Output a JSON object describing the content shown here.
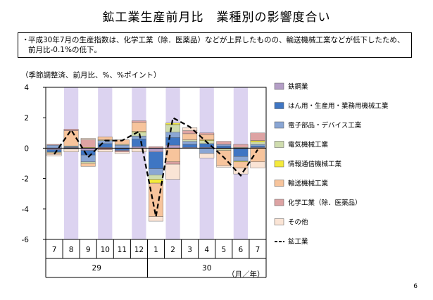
{
  "page": {
    "title": "鉱工業生産前月比　業種別の影響度合い",
    "note_bullet": "・",
    "note": "平成30年7月の生産指数は、化学工業（除．医薬品）などが上昇したものの、輸送機械工業などが低下したため、前月比-0.1%の低下。",
    "unit_label": "（季節調整済、前月比、%、%ポイント）",
    "page_number": "6"
  },
  "chart_data": {
    "type": "bar",
    "stacked": true,
    "with_line": true,
    "ylim": [
      -6,
      4
    ],
    "y_ticks": [
      "4",
      "2",
      "0",
      "-2",
      "-4",
      "-6"
    ],
    "categories": [
      "7",
      "8",
      "9",
      "10",
      "11",
      "12",
      "1",
      "2",
      "3",
      "4",
      "5",
      "6",
      "7"
    ],
    "year_labels": [
      {
        "label": "29",
        "span": [
          0,
          5
        ]
      },
      {
        "label": "30",
        "span": [
          6,
          12
        ]
      }
    ],
    "x_unit": "（月／年）",
    "shaded_categories": [
      1,
      3,
      5,
      7,
      9,
      11
    ],
    "colors": {
      "shade": "#dcd3f0",
      "line": "#000000"
    },
    "series": [
      {
        "name": "鉄鋼業",
        "color": "#b49ec6",
        "values": [
          -0.1,
          0.05,
          -0.15,
          0.05,
          -0.05,
          0.1,
          -0.25,
          0.2,
          0.05,
          0.05,
          -0.05,
          -0.05,
          0.05
        ]
      },
      {
        "name": "はん用・生産用・業務用機械工業",
        "color": "#3f76c3",
        "values": [
          -0.15,
          0.05,
          -0.3,
          0.25,
          -0.1,
          0.5,
          -1.1,
          0.5,
          0.2,
          0.25,
          0.15,
          -0.5,
          0.1
        ]
      },
      {
        "name": "電子部品・デバイス工業",
        "color": "#8aa6d4",
        "values": [
          0.2,
          -0.05,
          -0.45,
          0.2,
          0.2,
          0.2,
          -0.4,
          0.35,
          0.2,
          -0.35,
          0.1,
          -0.3,
          0.1
        ]
      },
      {
        "name": "電気機械工業",
        "color": "#cfdcae",
        "values": [
          -0.05,
          0.05,
          -0.1,
          0.05,
          0.05,
          0.25,
          -0.3,
          0.5,
          0.1,
          0.2,
          -0.1,
          0.05,
          0.15
        ]
      },
      {
        "name": "情報通信機械工業",
        "color": "#f4ea3c",
        "values": [
          0.0,
          0.0,
          0.05,
          0.0,
          0.0,
          0.05,
          -0.25,
          0.1,
          0.0,
          0.05,
          0.0,
          -0.05,
          0.1
        ]
      },
      {
        "name": "輸送機械工業",
        "color": "#f7c49c",
        "values": [
          -0.1,
          1.0,
          -0.2,
          0.2,
          0.3,
          0.6,
          -2.2,
          -0.9,
          0.4,
          0.35,
          -1.0,
          -0.4,
          -0.9
        ]
      },
      {
        "name": "化学工業（除．医薬品）",
        "color": "#dda3a3",
        "values": [
          0.05,
          0.1,
          0.5,
          -0.1,
          -0.1,
          0.1,
          0.1,
          -0.15,
          0.2,
          0.1,
          0.2,
          0.2,
          0.5
        ]
      },
      {
        "name": "その他",
        "color": "#fae4d5",
        "values": [
          -0.1,
          -0.2,
          0.1,
          -0.15,
          -0.1,
          -0.25,
          -0.3,
          -1.0,
          0.2,
          -0.3,
          -0.1,
          -0.4,
          -0.4
        ]
      },
      {
        "name": "鉱工業",
        "type": "line",
        "color": "#000000",
        "values": [
          -0.4,
          1.2,
          -0.6,
          0.5,
          0.5,
          1.1,
          -4.5,
          2.0,
          1.4,
          0.4,
          -0.6,
          -1.8,
          -0.1
        ]
      }
    ]
  }
}
